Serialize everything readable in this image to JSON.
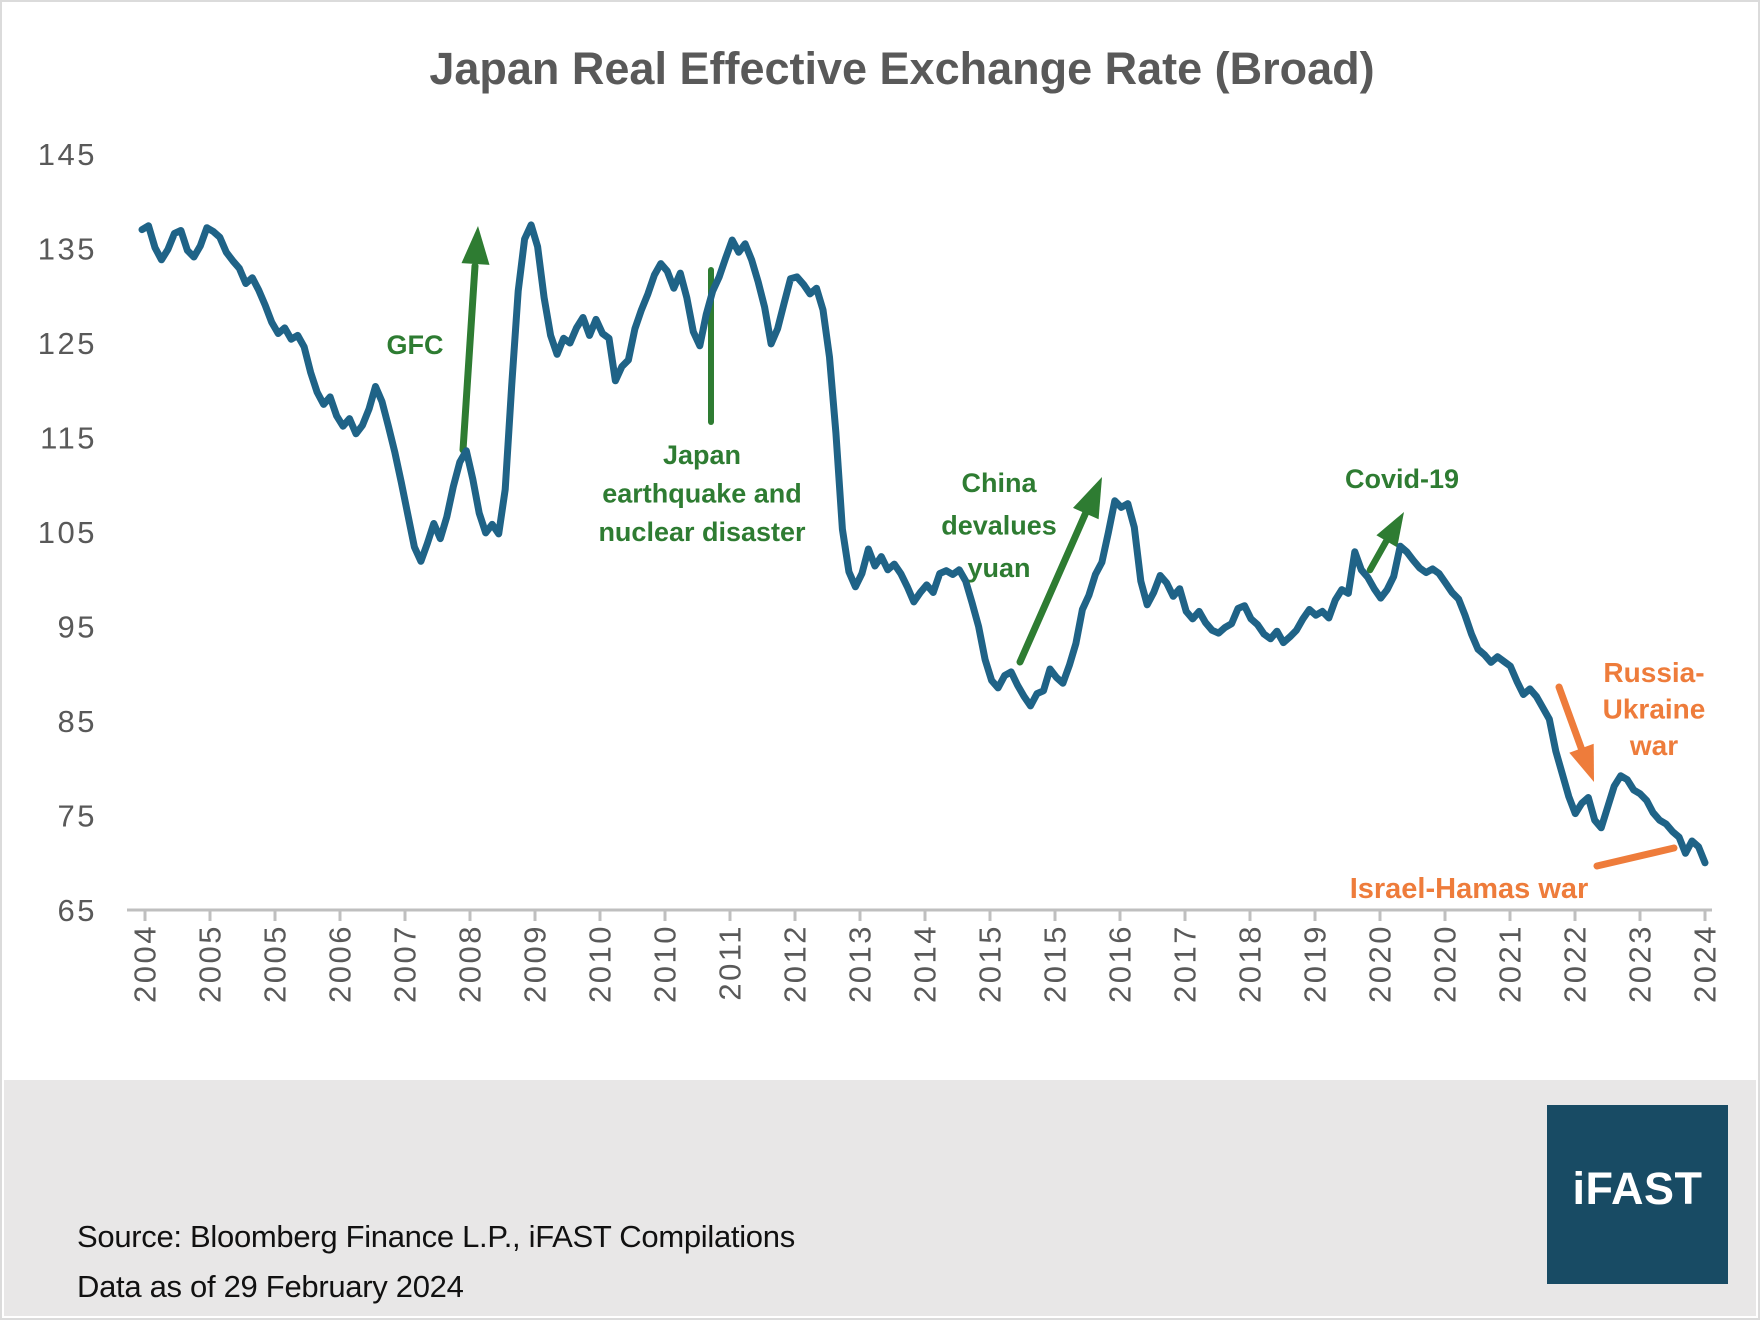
{
  "title": "Japan Real Effective Exchange Rate (Broad)",
  "footer": {
    "source_line": "Source: Bloomberg Finance L.P., iFAST Compilations",
    "data_as_of_line": "Data as of 29 February 2024",
    "logo_text": "iFAST"
  },
  "colors": {
    "line": "#1F6387",
    "annotation_green": "#2E7C32",
    "annotation_orange": "#EE7C3B",
    "axis": "#BFBFBF",
    "label_gray": "#595959",
    "footer_bg": "#E8E7E7",
    "logo_bg": "#184B64",
    "page_border": "#DBDBDB"
  },
  "chart_data": {
    "type": "line",
    "title": "Japan Real Effective Exchange Rate (Broad)",
    "x_start": "2004-01",
    "x_end": "2024-02",
    "frequency": "monthly",
    "ylim": [
      65,
      145
    ],
    "y_ticks": [
      145,
      135,
      125,
      115,
      105,
      95,
      85,
      75,
      65
    ],
    "x_tick_labels": [
      "2004",
      "2005",
      "2005",
      "2006",
      "2007",
      "2008",
      "2009",
      "2010",
      "2010",
      "2011",
      "2012",
      "2013",
      "2014",
      "2015",
      "2015",
      "2016",
      "2017",
      "2018",
      "2019",
      "2020",
      "2020",
      "2021",
      "2022",
      "2023",
      "2024"
    ],
    "grid": false,
    "legend": "none",
    "series": [
      {
        "name": "Japan Real Effective Exchange Rate (Broad)",
        "color": "#1F6387",
        "values": [
          137.0,
          137.4,
          135.1,
          133.8,
          134.9,
          136.6,
          136.9,
          134.8,
          134.1,
          135.3,
          137.2,
          136.8,
          136.2,
          134.6,
          133.7,
          132.9,
          131.3,
          131.9,
          130.6,
          129.0,
          127.2,
          126.0,
          126.6,
          125.4,
          125.8,
          124.6,
          121.9,
          119.8,
          118.5,
          119.3,
          117.3,
          116.2,
          117.0,
          115.4,
          116.3,
          118.0,
          120.4,
          118.8,
          116.2,
          113.4,
          110.2,
          106.8,
          103.4,
          101.9,
          103.8,
          105.9,
          104.3,
          106.6,
          109.8,
          112.4,
          113.6,
          110.6,
          107.0,
          104.9,
          105.8,
          104.8,
          109.5,
          120.5,
          130.5,
          136.0,
          137.5,
          135.2,
          129.8,
          125.8,
          123.8,
          125.5,
          125.0,
          126.6,
          127.7,
          125.8,
          127.5,
          126.0,
          125.5,
          121.0,
          122.5,
          123.2,
          126.5,
          128.5,
          130.2,
          132.2,
          133.4,
          132.6,
          130.8,
          132.4,
          129.8,
          126.2,
          124.7,
          128.0,
          130.5,
          132.0,
          134.0,
          135.9,
          134.6,
          135.5,
          133.8,
          131.5,
          128.8,
          124.9,
          126.5,
          129.2,
          131.8,
          132.0,
          131.2,
          130.2,
          130.8,
          128.5,
          123.5,
          115.5,
          105.3,
          100.8,
          99.2,
          100.6,
          103.2,
          101.4,
          102.4,
          101.0,
          101.6,
          100.6,
          99.2,
          97.6,
          98.6,
          99.4,
          98.6,
          100.6,
          100.9,
          100.5,
          101.0,
          99.8,
          97.5,
          95.0,
          91.5,
          89.3,
          88.5,
          89.8,
          90.2,
          88.8,
          87.6,
          86.6,
          87.9,
          88.2,
          90.5,
          89.6,
          89.0,
          90.9,
          93.2,
          96.8,
          98.3,
          100.5,
          101.8,
          104.9,
          108.3,
          107.6,
          108.0,
          105.5,
          99.8,
          97.3,
          98.6,
          100.4,
          99.6,
          98.2,
          99.0,
          96.6,
          95.8,
          96.6,
          95.4,
          94.6,
          94.3,
          94.9,
          95.3,
          96.9,
          97.2,
          95.8,
          95.2,
          94.2,
          93.7,
          94.5,
          93.3,
          93.9,
          94.6,
          95.8,
          96.8,
          96.2,
          96.6,
          95.9,
          97.8,
          98.9,
          98.5,
          102.9,
          101.0,
          100.2,
          99.0,
          98.0,
          98.9,
          100.3,
          103.5,
          102.9,
          102.0,
          101.2,
          100.7,
          101.1,
          100.6,
          99.6,
          98.6,
          97.9,
          96.2,
          94.2,
          92.6,
          92.0,
          91.2,
          91.8,
          91.3,
          90.8,
          89.2,
          87.8,
          88.4,
          87.6,
          86.4,
          85.2,
          81.8,
          79.4,
          77.0,
          75.2,
          76.3,
          76.9,
          74.5,
          73.7,
          75.9,
          78.1,
          79.2,
          78.8,
          77.7,
          77.3,
          76.6,
          75.3,
          74.5,
          74.1,
          73.3,
          72.7,
          71.0,
          72.3,
          71.7,
          70.0
        ]
      }
    ],
    "annotations": [
      {
        "id": "gfc",
        "lines": [
          "GFC"
        ],
        "color": "#2E7C32",
        "pointer": "arrow-up"
      },
      {
        "id": "japan-earthquake",
        "lines": [
          "Japan",
          "earthquake and",
          "nuclear disaster"
        ],
        "color": "#2E7C32",
        "pointer": "vertical-line"
      },
      {
        "id": "china-devalues-yuan",
        "lines": [
          "China",
          "devalues",
          "yuan"
        ],
        "color": "#2E7C32",
        "pointer": "arrow-up-right"
      },
      {
        "id": "covid-19",
        "lines": [
          "Covid-19"
        ],
        "color": "#2E7C32",
        "pointer": "arrow-up-right"
      },
      {
        "id": "russia-ukraine-war",
        "lines": [
          "Russia-",
          "Ukraine",
          "war"
        ],
        "color": "#EE7C3B",
        "pointer": "arrow-down-right"
      },
      {
        "id": "israel-hamas-war",
        "lines": [
          "Israel-Hamas war"
        ],
        "color": "#EE7C3B",
        "pointer": "line-up-right"
      }
    ]
  }
}
